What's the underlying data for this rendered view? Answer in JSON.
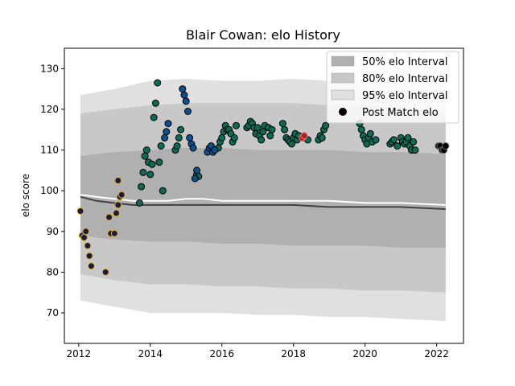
{
  "chart_data": {
    "type": "scatter",
    "title": "Blair Cowan: elo History",
    "xlabel": "",
    "ylabel": "elo score",
    "xlim": [
      2011.6,
      2022.75
    ],
    "ylim": [
      62.5,
      135
    ],
    "x_ticks": [
      2012,
      2014,
      2016,
      2018,
      2020,
      2022
    ],
    "y_ticks": [
      70,
      80,
      90,
      100,
      110,
      120,
      130
    ],
    "legend": {
      "position": "top-right",
      "entries": [
        {
          "label": "50% elo Interval",
          "color": "#b0b0b0",
          "kind": "patch"
        },
        {
          "label": "80% elo Interval",
          "color": "#c8c8c8",
          "kind": "patch"
        },
        {
          "label": "95% elo Interval",
          "color": "#e0e0e0",
          "kind": "patch"
        },
        {
          "label": "Post Match elo",
          "color": "#000000",
          "kind": "marker"
        }
      ]
    },
    "bands": {
      "x": [
        2012.05,
        2013.0,
        2014.0,
        2015.0,
        2016.0,
        2017.0,
        2018.0,
        2019.0,
        2020.0,
        2021.0,
        2022.25
      ],
      "p95_upper": [
        123.5,
        125,
        127,
        127.5,
        127,
        127,
        127.5,
        127,
        127,
        126.5,
        126.5
      ],
      "p95_lower": [
        73,
        71.5,
        70,
        70,
        70,
        69.5,
        69.5,
        69,
        69,
        68.5,
        68
      ],
      "p80_upper": [
        119,
        120,
        121,
        121.5,
        121.5,
        121.5,
        121.5,
        121,
        121,
        120.5,
        119.5
      ],
      "p80_lower": [
        79.5,
        78,
        77,
        77,
        76.5,
        76.5,
        76,
        76,
        75.5,
        75.5,
        75
      ],
      "p50_upper": [
        108.5,
        109.5,
        110,
        110.5,
        110.5,
        110,
        110,
        110,
        109.5,
        109.5,
        109
      ],
      "p50_lower": [
        89,
        88,
        87.5,
        87.5,
        87,
        87,
        86.5,
        86.5,
        86.5,
        86,
        86
      ]
    },
    "series": [
      {
        "color": "#404040",
        "kind": "line",
        "x": [
          2012.05,
          2012.5,
          2013.0,
          2013.5,
          2014.0,
          2014.5,
          2015.0,
          2015.5,
          2016.0,
          2017.0,
          2018.0,
          2019.0,
          2020.0,
          2021.0,
          2022.25
        ],
        "y": [
          98.5,
          97.5,
          97,
          96.5,
          96.5,
          96.5,
          96.5,
          96.5,
          96.5,
          96.5,
          96.5,
          96,
          96,
          96,
          95.5
        ]
      },
      {
        "color": "#ffffff",
        "kind": "line",
        "x": [
          2012.05,
          2012.5,
          2013.0,
          2013.5,
          2014.0,
          2014.5,
          2015.0,
          2015.5,
          2016.0,
          2017.0,
          2018.0,
          2019.0,
          2020.0,
          2021.0,
          2022.25
        ],
        "y": [
          99,
          98.5,
          98,
          97.5,
          97.5,
          97.5,
          98,
          98,
          97.5,
          97.5,
          97.5,
          97.5,
          97,
          97,
          96.5
        ]
      },
      {
        "color": "#1c1c38",
        "edge": "#e0b040",
        "kind": "scatter",
        "x": [
          2012.05,
          2012.1,
          2012.15,
          2012.2,
          2012.25,
          2012.3,
          2012.35,
          2012.75,
          2012.85,
          2012.9,
          2013.0,
          2013.05,
          2013.1,
          2013.15,
          2013.2,
          2013.1
        ],
        "y": [
          95,
          89,
          88.5,
          90,
          86.5,
          84,
          81.5,
          80,
          93.5,
          89.5,
          89.5,
          94.5,
          96.5,
          98.5,
          99,
          102.5
        ]
      },
      {
        "color": "#0d6b55",
        "edge": "#000000",
        "kind": "scatter",
        "x": [
          2013.7,
          2013.75,
          2013.8,
          2013.85,
          2013.9,
          2013.95,
          2014.0,
          2014.05,
          2014.1,
          2014.15,
          2014.2,
          2014.25,
          2014.3,
          2014.35,
          2014.7,
          2014.75,
          2014.8,
          2014.85,
          2015.3,
          2015.35,
          2015.9,
          2015.95,
          2016.0,
          2016.05,
          2016.1,
          2016.15,
          2016.2,
          2016.25,
          2016.3,
          2016.35,
          2016.4,
          2016.7,
          2016.75,
          2016.8,
          2016.85,
          2016.9,
          2016.95,
          2017.0,
          2017.05,
          2017.1,
          2017.15,
          2017.2,
          2017.3,
          2017.35,
          2017.4,
          2017.7,
          2017.75,
          2017.8,
          2017.85,
          2017.9,
          2017.95,
          2018.0,
          2018.05,
          2018.1,
          2018.15,
          2018.4,
          2018.7,
          2018.75,
          2018.8,
          2018.85,
          2018.9,
          2019.85,
          2019.9,
          2019.95,
          2020.0,
          2020.05,
          2020.1,
          2020.15,
          2020.2,
          2020.3,
          2020.7,
          2020.75,
          2020.8,
          2020.9,
          2021.0,
          2021.05,
          2021.1,
          2021.15,
          2021.2,
          2021.25,
          2021.3,
          2021.35,
          2021.4
        ],
        "y": [
          97,
          101,
          104.5,
          108.5,
          110,
          107,
          104,
          106.5,
          118,
          121.5,
          126.5,
          107,
          111,
          100,
          110,
          111,
          113,
          115,
          104,
          103.5,
          110.5,
          112,
          113,
          114.5,
          116,
          115,
          115,
          114,
          112,
          113,
          116,
          115.5,
          116,
          117,
          116.5,
          115.5,
          114,
          115.5,
          113.5,
          112.5,
          114.5,
          116,
          115.5,
          113.5,
          115,
          116.5,
          115,
          113,
          112.5,
          112,
          111.5,
          113,
          114,
          112.5,
          113.5,
          112.5,
          112.5,
          113.5,
          113,
          115,
          116,
          116.5,
          115,
          113.5,
          112.5,
          111.5,
          113,
          114,
          112,
          112.5,
          111.5,
          112,
          112.5,
          111,
          113,
          112,
          111.5,
          112,
          113,
          111,
          110,
          112,
          110
        ]
      },
      {
        "color": "#0b4f8c",
        "edge": "#000000",
        "kind": "scatter",
        "x": [
          2014.4,
          2014.45,
          2014.5,
          2014.9,
          2014.95,
          2015.0,
          2015.05,
          2015.1,
          2015.15,
          2015.2,
          2015.25,
          2015.3,
          2015.6,
          2015.65,
          2015.7,
          2015.75,
          2015.8
        ],
        "y": [
          113,
          114.5,
          116.5,
          125,
          123.5,
          122,
          119.5,
          113,
          111.5,
          110.5,
          103,
          105,
          109.5,
          110.5,
          111,
          109.5,
          110
        ]
      },
      {
        "color": "#a02828",
        "edge": "#ff6666",
        "kind": "scatter",
        "x": [
          2018.25,
          2018.3
        ],
        "y": [
          113,
          113.5
        ]
      },
      {
        "color": "#000000",
        "edge": "#666666",
        "kind": "scatter",
        "x": [
          2022.05,
          2022.1,
          2022.15,
          2022.2,
          2022.25
        ],
        "y": [
          111,
          111,
          110,
          110,
          111
        ]
      }
    ]
  }
}
